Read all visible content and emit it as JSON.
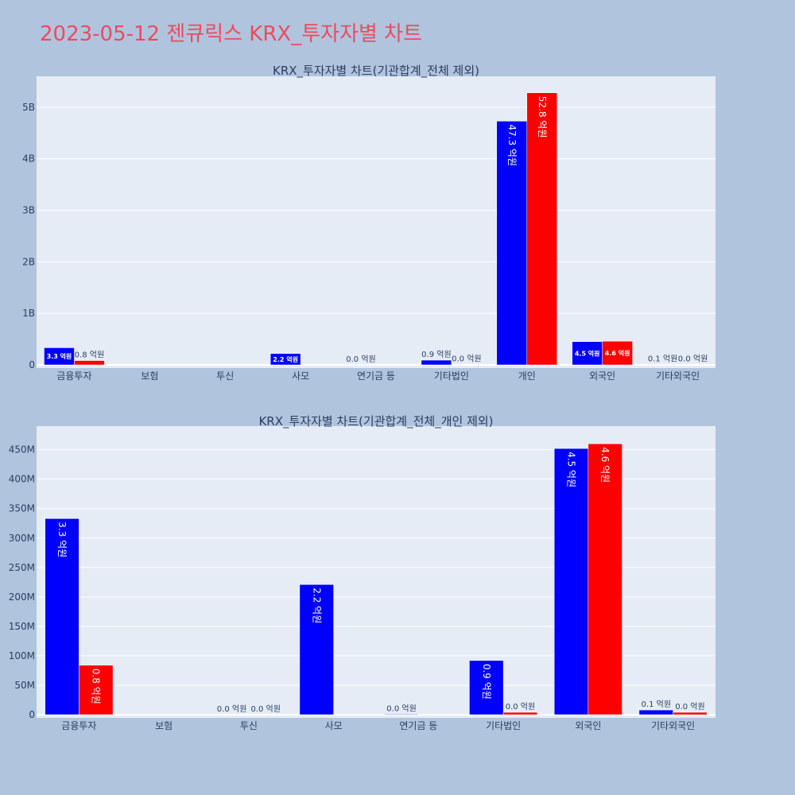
{
  "page": {
    "title": "2023-05-12 젠큐릭스 KRX_투자자별 차트"
  },
  "colors": {
    "buy": "#0000ff",
    "sell": "#ff0000",
    "plot_bg": "#e5ecf6",
    "paper_bg": "#b0c4de",
    "title": "#ec4b5e",
    "text": "#2a3f5f"
  },
  "chart_data": [
    {
      "type": "bar",
      "title": "KRX_투자자별 차트(기관합계_전체 제외)",
      "categories": [
        "금융투자",
        "보험",
        "투신",
        "사모",
        "연기금 등",
        "기타법인",
        "개인",
        "외국인",
        "기타외국인"
      ],
      "series": [
        {
          "values": [
            333000000,
            null,
            null,
            221000000,
            1000000,
            92000000,
            4730000000,
            452000000,
            8000000
          ],
          "labels": [
            "3.3 억원",
            "",
            "",
            "2.2 억원",
            "0.0 억원",
            "0.9 억원",
            "47.3 억원",
            "4.5 억원",
            "0.1 억원"
          ]
        },
        {
          "values": [
            84000000,
            null,
            null,
            null,
            null,
            4000000,
            5280000000,
            460000000,
            4000000
          ],
          "labels": [
            "0.8 억원",
            "",
            "",
            "",
            "",
            "0.0 억원",
            "52.8 억원",
            "4.6 억원",
            "0.0 억원"
          ]
        }
      ],
      "ylim": [
        0,
        5600000000
      ],
      "yticks": [
        0,
        1000000000,
        2000000000,
        3000000000,
        4000000000,
        5000000000
      ],
      "ytick_labels": [
        "0",
        "1B",
        "2B",
        "3B",
        "4B",
        "5B"
      ],
      "grid": true
    },
    {
      "type": "bar",
      "title": "KRX_투자자별 차트(기관합계_전체_개인 제외)",
      "categories": [
        "금융투자",
        "보험",
        "투신",
        "사모",
        "연기금 등",
        "기타법인",
        "외국인",
        "기타외국인"
      ],
      "series": [
        {
          "values": [
            333000000,
            null,
            0,
            221000000,
            1000000,
            92000000,
            452000000,
            8000000
          ],
          "labels": [
            "3.3 억원",
            "",
            "0.0 억원",
            "2.2 억원",
            "0.0 억원",
            "0.9 억원",
            "4.5 억원",
            "0.1 억원"
          ]
        },
        {
          "values": [
            84000000,
            null,
            0,
            null,
            null,
            4000000,
            460000000,
            4000000
          ],
          "labels": [
            "0.8 억원",
            "",
            "0.0 억원",
            "",
            "",
            "0.0 억원",
            "4.6 억원",
            "0.0 억원"
          ]
        }
      ],
      "ylim": [
        0,
        490000000
      ],
      "yticks": [
        0,
        50000000,
        100000000,
        150000000,
        200000000,
        250000000,
        300000000,
        350000000,
        400000000,
        450000000
      ],
      "ytick_labels": [
        "0",
        "50M",
        "100M",
        "150M",
        "200M",
        "250M",
        "300M",
        "350M",
        "400M",
        "450M"
      ],
      "grid": true
    }
  ]
}
